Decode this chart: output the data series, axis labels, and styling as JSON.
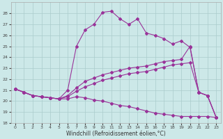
{
  "xlabel": "Windchill (Refroidissement éolien,°C)",
  "xlim": [
    -0.5,
    23.5
  ],
  "ylim": [
    18,
    29
  ],
  "yticks": [
    18,
    19,
    20,
    21,
    22,
    23,
    24,
    25,
    26,
    27,
    28
  ],
  "xticks": [
    0,
    1,
    2,
    3,
    4,
    5,
    6,
    7,
    8,
    9,
    10,
    11,
    12,
    13,
    14,
    15,
    16,
    17,
    18,
    19,
    20,
    21,
    22,
    23
  ],
  "bg_color": "#cce8e8",
  "grid_color": "#aacccc",
  "line_color": "#993399",
  "line1_x": [
    0,
    1,
    2,
    3,
    4,
    5,
    6,
    7,
    8,
    9,
    10,
    11,
    12,
    13,
    14,
    15,
    16,
    17,
    18,
    19,
    20,
    21,
    22,
    23
  ],
  "line1_y": [
    21.1,
    20.8,
    20.5,
    20.4,
    20.3,
    20.2,
    21.0,
    25.0,
    26.5,
    27.0,
    28.1,
    28.2,
    27.5,
    27.0,
    27.5,
    26.2,
    26.0,
    25.7,
    25.2,
    25.5,
    24.9,
    20.8,
    20.5,
    18.5
  ],
  "line2_x": [
    0,
    1,
    2,
    3,
    4,
    5,
    6,
    7,
    8,
    9,
    10,
    11,
    12,
    13,
    14,
    15,
    16,
    17,
    18,
    19,
    20,
    21,
    22,
    23
  ],
  "line2_y": [
    21.1,
    20.8,
    20.5,
    20.4,
    20.3,
    20.2,
    20.5,
    21.2,
    21.8,
    22.1,
    22.4,
    22.6,
    22.8,
    23.0,
    23.1,
    23.2,
    23.4,
    23.6,
    23.7,
    23.8,
    25.0,
    20.8,
    20.5,
    18.5
  ],
  "line3_x": [
    0,
    1,
    2,
    3,
    4,
    5,
    6,
    7,
    8,
    9,
    10,
    11,
    12,
    13,
    14,
    15,
    16,
    17,
    18,
    19,
    20,
    21,
    22,
    23
  ],
  "line3_y": [
    21.1,
    20.8,
    20.5,
    20.4,
    20.3,
    20.2,
    20.4,
    20.9,
    21.3,
    21.6,
    21.9,
    22.1,
    22.3,
    22.5,
    22.6,
    22.7,
    22.9,
    23.1,
    23.3,
    23.4,
    23.5,
    20.8,
    20.5,
    18.5
  ],
  "line4_x": [
    0,
    1,
    2,
    3,
    4,
    5,
    6,
    7,
    8,
    9,
    10,
    11,
    12,
    13,
    14,
    15,
    16,
    17,
    18,
    19,
    20,
    21,
    22,
    23
  ],
  "line4_y": [
    21.1,
    20.8,
    20.5,
    20.4,
    20.3,
    20.2,
    20.2,
    20.4,
    20.3,
    20.1,
    20.0,
    19.8,
    19.6,
    19.5,
    19.3,
    19.1,
    18.9,
    18.8,
    18.7,
    18.6,
    18.6,
    18.6,
    18.6,
    18.5
  ]
}
